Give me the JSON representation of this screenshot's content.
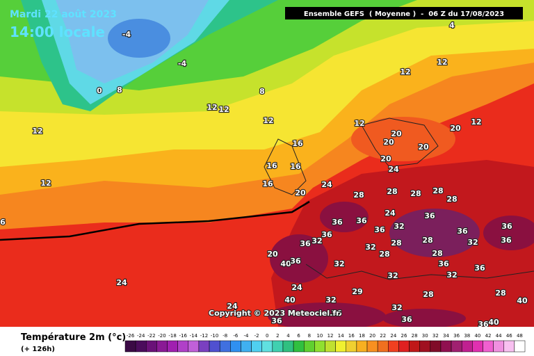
{
  "header": {
    "date": "Mardi 22 août 2023",
    "time": "14:00 locale",
    "model": "Ensemble GEFS  ( Moyenne )  -  06 Z du 17/08/2023",
    "copyright": "Copyright © 2023 Meteociel.fr"
  },
  "legend": {
    "title": "Température 2m (°c)",
    "lead": "(+ 126h)",
    "ticks": [
      -26,
      -24,
      -22,
      -20,
      -18,
      -16,
      -14,
      -12,
      -10,
      -8,
      -6,
      -4,
      -2,
      0,
      2,
      4,
      6,
      8,
      10,
      12,
      14,
      16,
      18,
      20,
      22,
      24,
      26,
      28,
      30,
      32,
      34,
      36,
      38,
      40,
      42,
      44,
      46,
      48
    ],
    "colors": [
      "#3b0a45",
      "#4b0c5c",
      "#6a1178",
      "#8a1a95",
      "#a020b0",
      "#b040c8",
      "#c060d8",
      "#7a40c0",
      "#5050d0",
      "#4070e0",
      "#3090f0",
      "#40b0f0",
      "#50d0f0",
      "#60e0e0",
      "#40d0b0",
      "#30c080",
      "#30c040",
      "#60d030",
      "#90e030",
      "#c0e030",
      "#f0f030",
      "#f0d030",
      "#f8b020",
      "#f89020",
      "#f07020",
      "#f04020",
      "#e02020",
      "#c01818",
      "#a01020",
      "#800c28",
      "#901050",
      "#a02070",
      "#c02090",
      "#e030b0",
      "#f060d0",
      "#f090e0",
      "#f8c0f0",
      "#ffffff"
    ]
  },
  "map": {
    "labels": [
      -4,
      -4,
      4,
      0,
      8,
      8,
      12,
      12,
      12,
      12,
      12,
      12,
      12,
      12,
      16,
      16,
      16,
      16,
      20,
      20,
      20,
      20,
      20,
      20,
      24,
      24,
      28,
      28,
      28,
      28,
      28,
      24,
      36,
      36,
      36,
      32,
      36,
      36,
      36,
      36,
      36,
      32,
      32,
      28,
      28,
      32,
      36,
      20,
      40,
      36,
      32,
      28,
      28,
      36,
      36,
      32,
      32,
      24,
      24,
      32,
      29,
      28,
      28,
      40,
      24,
      32,
      36,
      36,
      36,
      40,
      40,
      36,
      6,
      12
    ]
  }
}
